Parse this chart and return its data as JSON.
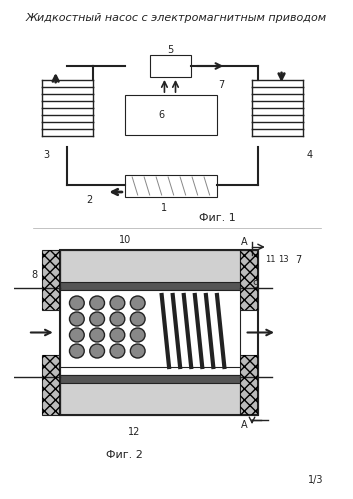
{
  "title": "Жидкостный насос с электромагнитным приводом",
  "title_fontsize": 8,
  "fig1_label": "Фиг. 1",
  "fig2_label": "Фиг. 2",
  "page_label": "1/3",
  "bg_color": "#ffffff",
  "dark_color": "#222222",
  "gray_color": "#888888",
  "hatch_color": "#555555",
  "light_gray": "#cccccc"
}
